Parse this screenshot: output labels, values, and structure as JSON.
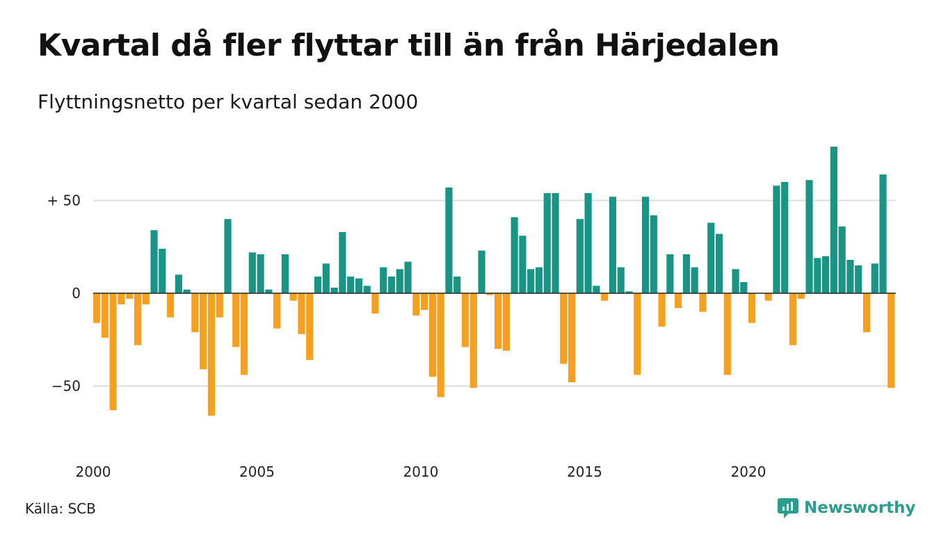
{
  "title": "Kvartal då fler flyttar till än från Härjedalen",
  "subtitle": "Flyttningsnetto per kvartal sedan 2000",
  "source": "Källa: SCB",
  "brand": {
    "name": "Newsworthy",
    "icon": "newsworthy-logo-icon",
    "color": "#2a9d8f"
  },
  "chart_data": {
    "type": "bar",
    "title": "Kvartal då fler flyttar till än från Härjedalen",
    "subtitle": "Flyttningsnetto per kvartal sedan 2000",
    "xlabel": "",
    "ylabel": "",
    "ylim": [
      -82,
      82
    ],
    "yticks": [
      {
        "value": 50,
        "label": "+ 50"
      },
      {
        "value": 0,
        "label": "0"
      },
      {
        "value": -50,
        "label": "−50"
      }
    ],
    "xticks": [
      {
        "value": 2000,
        "label": "2000"
      },
      {
        "value": 2005,
        "label": "2005"
      },
      {
        "value": 2010,
        "label": "2010"
      },
      {
        "value": 2015,
        "label": "2015"
      },
      {
        "value": 2020,
        "label": "2020"
      }
    ],
    "grid": true,
    "colors": {
      "positive": "#1a9484",
      "negative": "#f5a01f",
      "grid": "#dddddd",
      "zero": "#222222"
    },
    "start_year": 2000,
    "values": [
      -16,
      -24,
      -63,
      -6,
      -3,
      -28,
      -6,
      34,
      24,
      -13,
      10,
      2,
      -21,
      -41,
      -66,
      -13,
      40,
      -29,
      -44,
      22,
      21,
      2,
      -19,
      21,
      -4,
      -22,
      -36,
      9,
      16,
      3,
      33,
      9,
      8,
      4,
      -11,
      14,
      9,
      13,
      17,
      -12,
      -9,
      -45,
      -56,
      57,
      9,
      -29,
      -51,
      23,
      -1,
      -30,
      -31,
      41,
      31,
      13,
      14,
      54,
      54,
      -38,
      -48,
      40,
      54,
      4,
      -4,
      52,
      14,
      1,
      -44,
      52,
      42,
      -18,
      21,
      -8,
      21,
      14,
      -10,
      38,
      32,
      -44,
      13,
      6,
      -16,
      0,
      -4,
      58,
      60,
      -28,
      -3,
      61,
      19,
      20,
      79,
      36,
      18,
      15,
      -21,
      16,
      64,
      -51
    ]
  }
}
